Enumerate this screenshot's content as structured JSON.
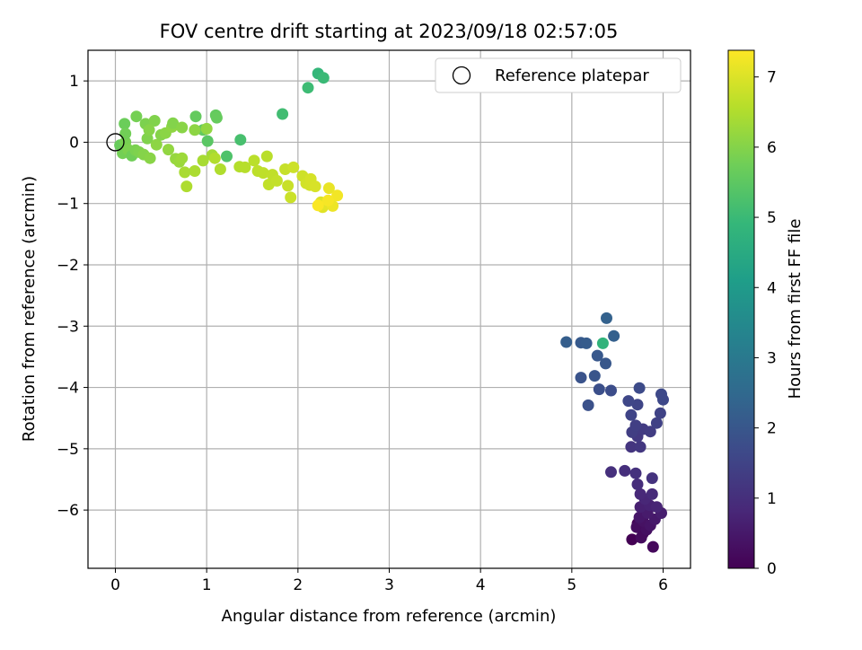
{
  "chart_data": {
    "type": "scatter",
    "title": "FOV centre drift starting at 2023/09/18 02:57:05",
    "xlabel": "Angular distance from reference (arcmin)",
    "ylabel": "Rotation from reference (arcmin)",
    "xlim": [
      -0.3,
      6.3
    ],
    "ylim": [
      -6.95,
      1.5
    ],
    "xticks": [
      0,
      1,
      2,
      3,
      4,
      5,
      6
    ],
    "yticks": [
      1,
      0,
      -1,
      -2,
      -3,
      -4,
      -5,
      -6
    ],
    "xtick_labels": [
      "0",
      "1",
      "2",
      "3",
      "4",
      "5",
      "6"
    ],
    "ytick_labels": [
      "1",
      "0",
      "−1",
      "−2",
      "−3",
      "−4",
      "−5",
      "−6"
    ],
    "grid": true,
    "legend": {
      "placement": "top-right",
      "entries": [
        "Reference platepar"
      ]
    },
    "colorbar": {
      "label": "Hours from first FF file",
      "range": [
        0,
        7.38
      ],
      "ticks": [
        0,
        1,
        2,
        3,
        4,
        5,
        6,
        7
      ],
      "tick_labels": [
        "0",
        "1",
        "2",
        "3",
        "4",
        "5",
        "6",
        "7"
      ],
      "colormap": [
        "#440154",
        "#482878",
        "#3e4989",
        "#31688e",
        "#26828e",
        "#1f9e89",
        "#35b779",
        "#6ece58",
        "#b5de2b",
        "#fde725"
      ]
    },
    "reference_point": {
      "x": 0,
      "y": 0
    },
    "series": [
      {
        "points": [
          [
            5.66,
            -6.48,
            0.0
          ],
          [
            5.72,
            -6.22,
            0.05
          ],
          [
            5.78,
            -6.38,
            0.1
          ],
          [
            5.89,
            -6.6,
            0.15
          ],
          [
            5.76,
            -6.45,
            0.2
          ],
          [
            5.71,
            -6.28,
            0.25
          ],
          [
            5.82,
            -6.32,
            0.3
          ],
          [
            5.78,
            -6.18,
            0.35
          ],
          [
            5.86,
            -6.25,
            0.4
          ],
          [
            5.74,
            -6.12,
            0.45
          ],
          [
            5.91,
            -6.15,
            0.5
          ],
          [
            5.83,
            -6.05,
            0.55
          ],
          [
            5.98,
            -6.05,
            0.6
          ],
          [
            5.75,
            -5.95,
            0.65
          ],
          [
            5.85,
            -5.92,
            0.7
          ],
          [
            5.93,
            -5.95,
            0.75
          ],
          [
            5.8,
            -5.82,
            0.8
          ],
          [
            5.75,
            -5.74,
            0.85
          ],
          [
            5.88,
            -5.74,
            0.9
          ],
          [
            5.72,
            -5.58,
            0.95
          ],
          [
            5.58,
            -5.36,
            1.0
          ],
          [
            5.43,
            -5.38,
            1.02
          ],
          [
            5.7,
            -5.4,
            1.05
          ],
          [
            5.88,
            -5.48,
            1.1
          ],
          [
            5.65,
            -4.97,
            1.15
          ],
          [
            5.75,
            -4.97,
            1.2
          ],
          [
            5.72,
            -4.8,
            1.25
          ],
          [
            5.78,
            -4.68,
            1.3
          ],
          [
            5.86,
            -4.72,
            1.33
          ],
          [
            5.66,
            -4.73,
            1.36
          ],
          [
            5.7,
            -4.62,
            1.4
          ],
          [
            5.93,
            -4.58,
            1.45
          ],
          [
            5.97,
            -4.42,
            1.5
          ],
          [
            5.65,
            -4.45,
            1.52
          ],
          [
            5.72,
            -4.28,
            1.55
          ],
          [
            5.62,
            -4.22,
            1.58
          ],
          [
            6.0,
            -4.2,
            1.62
          ],
          [
            5.98,
            -4.11,
            1.65
          ],
          [
            5.74,
            -4.01,
            1.7
          ],
          [
            5.43,
            -4.05,
            1.75
          ],
          [
            5.3,
            -4.03,
            1.8
          ],
          [
            5.18,
            -4.29,
            1.85
          ],
          [
            5.1,
            -3.84,
            1.9
          ],
          [
            5.25,
            -3.81,
            1.95
          ],
          [
            5.37,
            -3.61,
            2.0
          ],
          [
            5.28,
            -3.48,
            2.05
          ],
          [
            5.1,
            -3.27,
            2.1
          ],
          [
            5.16,
            -3.28,
            2.15
          ],
          [
            4.94,
            -3.26,
            2.2
          ],
          [
            5.46,
            -3.16,
            2.25
          ],
          [
            5.38,
            -2.87,
            2.3
          ],
          [
            5.34,
            -3.28,
            4.8
          ],
          [
            2.22,
            1.12,
            4.9
          ],
          [
            2.28,
            1.05,
            5.0
          ],
          [
            2.11,
            0.89,
            5.05
          ],
          [
            1.83,
            0.46,
            5.1
          ],
          [
            1.37,
            0.04,
            5.2
          ],
          [
            1.22,
            -0.23,
            5.3
          ],
          [
            0.05,
            -0.05,
            5.65
          ],
          [
            0.08,
            -0.18,
            5.8
          ],
          [
            0.11,
            0.0,
            5.85
          ],
          [
            0.14,
            -0.12,
            5.9
          ],
          [
            0.18,
            -0.22,
            5.75
          ],
          [
            0.22,
            -0.13,
            5.88
          ],
          [
            0.26,
            -0.16,
            5.92
          ],
          [
            0.31,
            -0.2,
            6.0
          ],
          [
            0.38,
            -0.26,
            6.05
          ],
          [
            0.35,
            0.06,
            5.95
          ],
          [
            0.45,
            -0.04,
            6.1
          ],
          [
            0.5,
            0.12,
            6.0
          ],
          [
            0.55,
            0.15,
            6.08
          ],
          [
            0.62,
            0.25,
            6.12
          ],
          [
            0.58,
            -0.12,
            6.15
          ],
          [
            0.66,
            -0.27,
            6.2
          ],
          [
            0.7,
            -0.32,
            6.25
          ],
          [
            0.73,
            -0.26,
            6.28
          ],
          [
            0.1,
            0.3,
            5.7
          ],
          [
            0.11,
            0.14,
            5.78
          ],
          [
            0.23,
            0.42,
            5.82
          ],
          [
            0.33,
            0.3,
            5.9
          ],
          [
            0.43,
            0.35,
            5.96
          ],
          [
            0.37,
            0.2,
            6.02
          ],
          [
            0.63,
            0.31,
            5.98
          ],
          [
            0.73,
            0.24,
            6.05
          ],
          [
            0.88,
            0.42,
            5.6
          ],
          [
            0.96,
            0.2,
            5.55
          ],
          [
            1.01,
            0.02,
            5.45
          ],
          [
            1.1,
            0.44,
            5.58
          ],
          [
            1.11,
            0.4,
            5.62
          ],
          [
            0.87,
            0.2,
            6.1
          ],
          [
            1.0,
            0.22,
            6.15
          ],
          [
            1.06,
            -0.21,
            6.35
          ],
          [
            0.96,
            -0.3,
            6.4
          ],
          [
            0.87,
            -0.47,
            6.45
          ],
          [
            0.76,
            -0.49,
            6.42
          ],
          [
            0.78,
            -0.72,
            6.48
          ],
          [
            1.15,
            -0.44,
            6.5
          ],
          [
            1.09,
            -0.26,
            6.52
          ],
          [
            1.36,
            -0.4,
            6.55
          ],
          [
            1.42,
            -0.41,
            6.58
          ],
          [
            1.52,
            -0.3,
            6.62
          ],
          [
            1.56,
            -0.47,
            6.65
          ],
          [
            1.62,
            -0.5,
            6.66
          ],
          [
            1.66,
            -0.23,
            6.6
          ],
          [
            1.68,
            -0.69,
            6.7
          ],
          [
            1.72,
            -0.53,
            6.68
          ],
          [
            1.77,
            -0.63,
            6.72
          ],
          [
            1.86,
            -0.44,
            6.75
          ],
          [
            1.89,
            -0.71,
            6.78
          ],
          [
            1.92,
            -0.9,
            6.8
          ],
          [
            1.95,
            -0.41,
            6.82
          ],
          [
            2.05,
            -0.55,
            6.85
          ],
          [
            2.09,
            -0.67,
            6.88
          ],
          [
            2.13,
            -0.7,
            6.9
          ],
          [
            2.14,
            -0.6,
            6.92
          ],
          [
            2.19,
            -0.72,
            6.95
          ],
          [
            2.25,
            -0.98,
            7.0
          ],
          [
            2.27,
            -1.06,
            7.05
          ],
          [
            2.3,
            -1.01,
            7.1
          ],
          [
            2.34,
            -0.75,
            7.15
          ],
          [
            2.38,
            -1.04,
            7.2
          ],
          [
            2.43,
            -0.87,
            7.25
          ],
          [
            2.33,
            -0.95,
            7.3
          ],
          [
            2.22,
            -1.03,
            7.35
          ]
        ]
      }
    ]
  }
}
